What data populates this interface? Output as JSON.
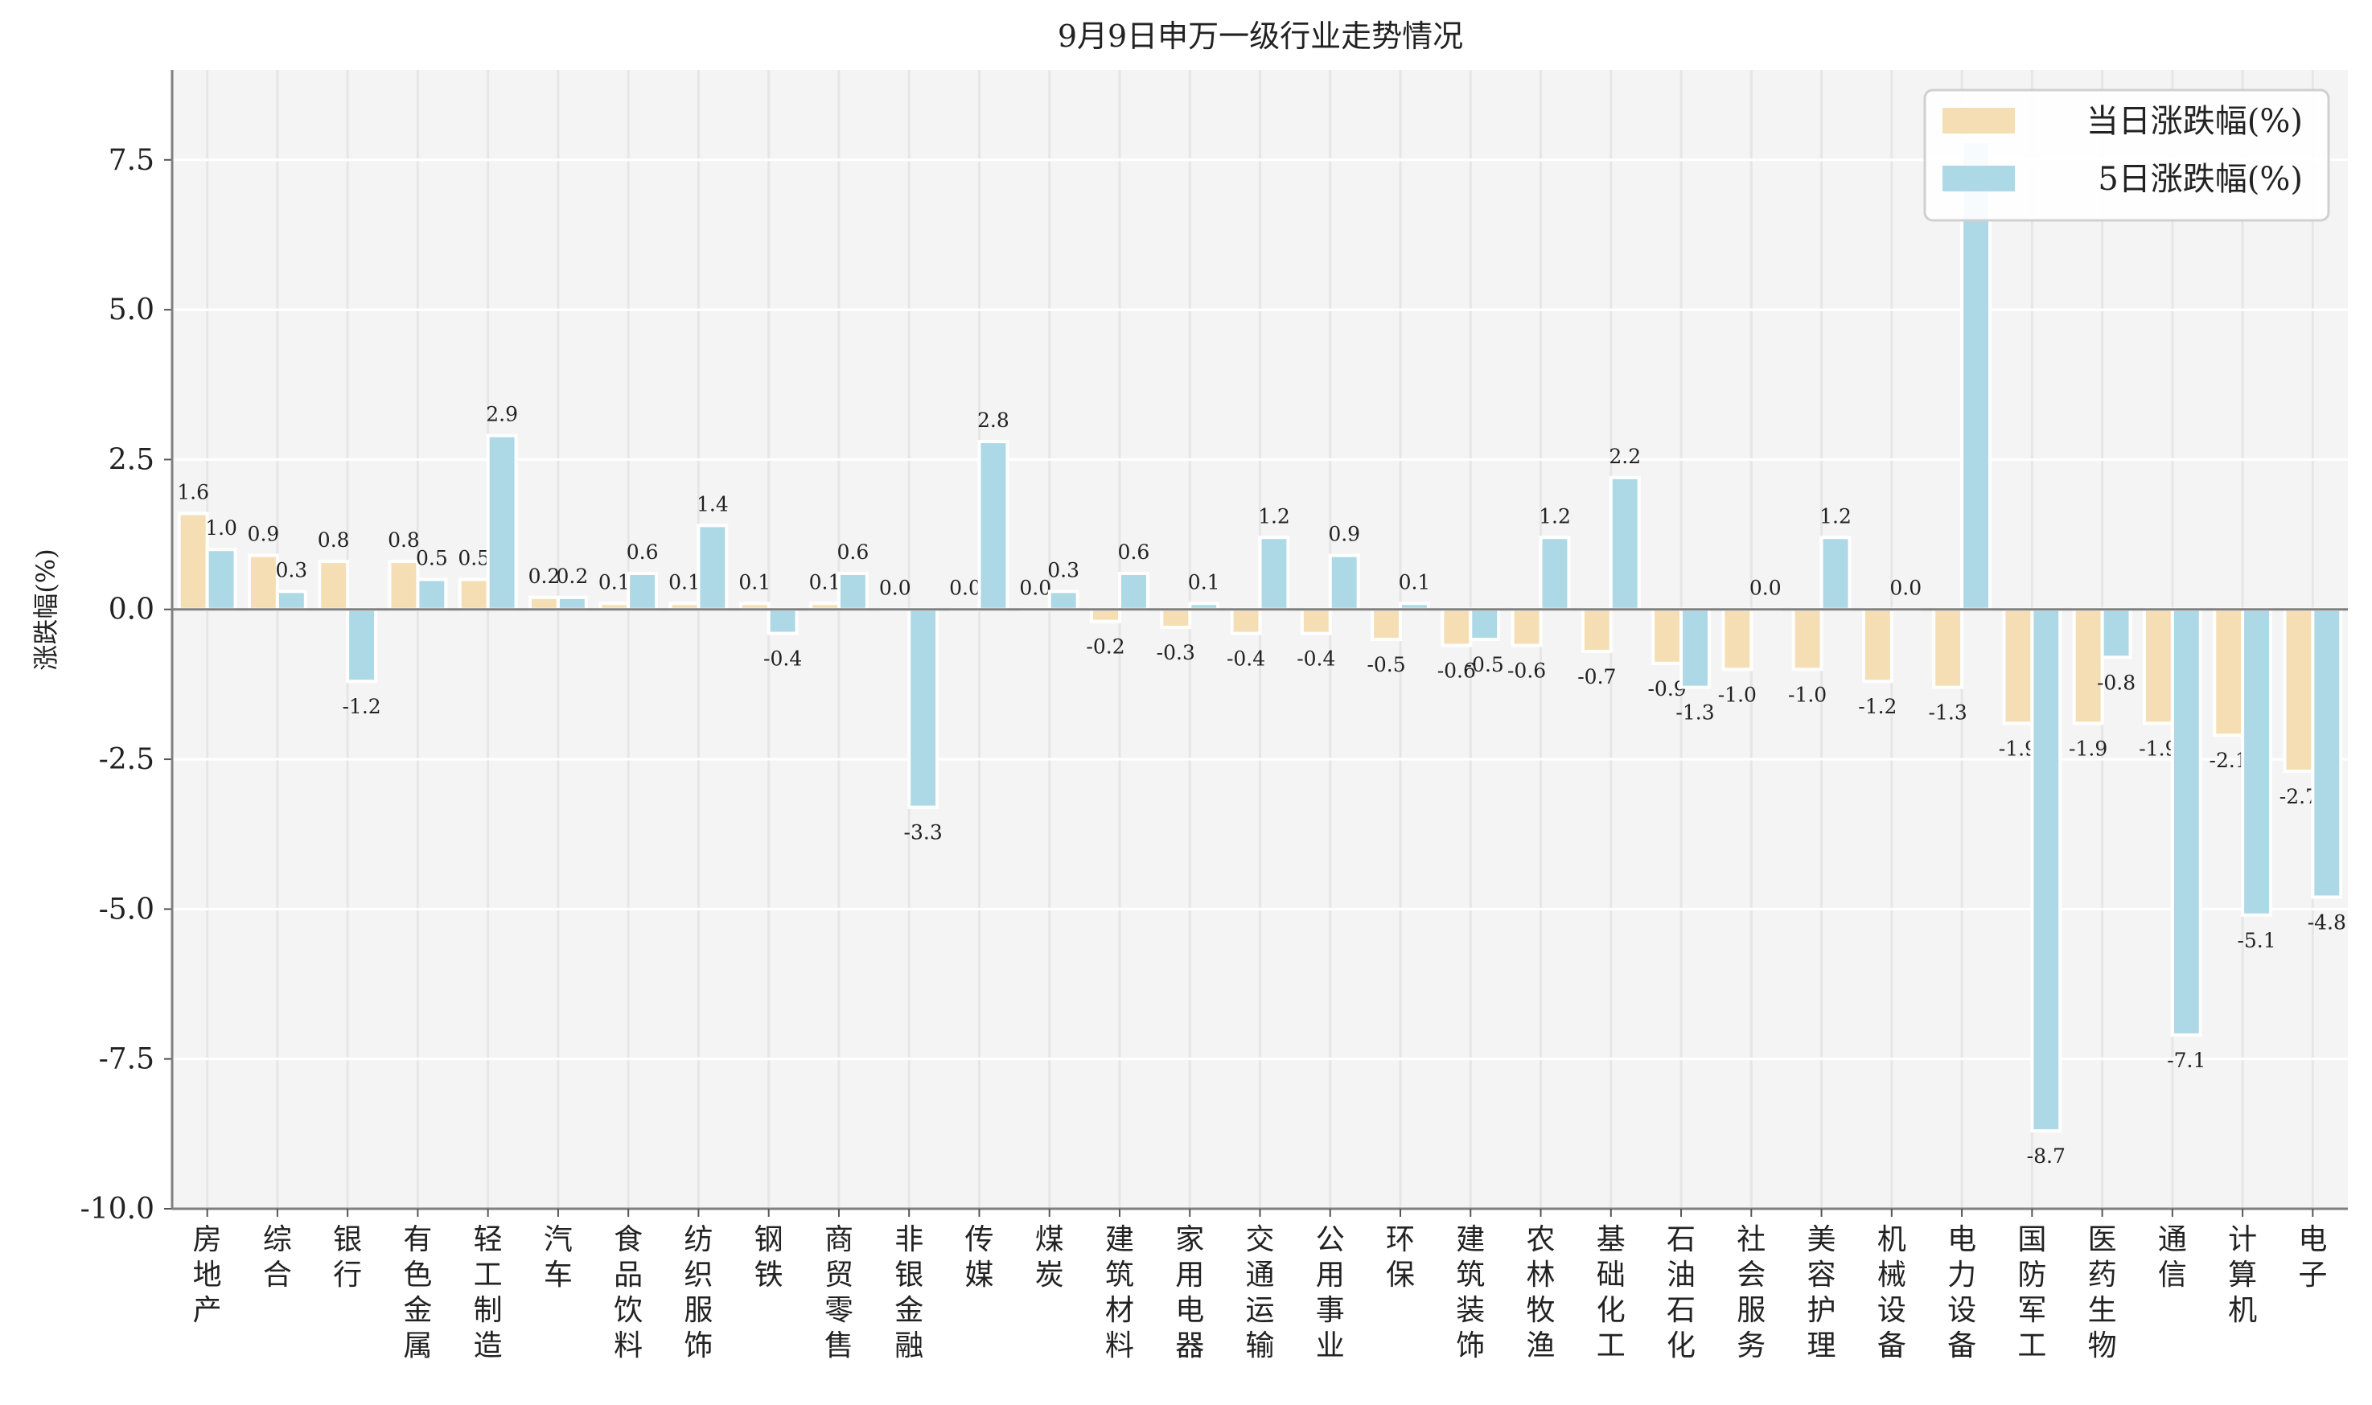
{
  "chart_data": {
    "type": "bar",
    "title": "9月9日申万一级行业走势情况",
    "xlabel": "",
    "ylabel": "涨跌幅(%)",
    "ylim": [
      -10,
      9
    ],
    "yticks": [
      -10.0,
      -7.5,
      -5.0,
      -2.5,
      0.0,
      2.5,
      5.0,
      7.5
    ],
    "ytick_labels": [
      "-10.0",
      "-7.5",
      "-5.0",
      "-2.5",
      "0.0",
      "2.5",
      "5.0",
      "7.5"
    ],
    "grid": true,
    "legend_position": "top-right",
    "categories": [
      "房地产",
      "综合",
      "银行",
      "有色金属",
      "轻工制造",
      "汽车",
      "食品饮料",
      "纺织服饰",
      "钢铁",
      "商贸零售",
      "非银金融",
      "传媒",
      "煤炭",
      "建筑材料",
      "家用电器",
      "交通运输",
      "公用事业",
      "环保",
      "建筑装饰",
      "农林牧渔",
      "基础化工",
      "石油石化",
      "社会服务",
      "美容护理",
      "机械设备",
      "电力设备",
      "国防军工",
      "医药生物",
      "通信",
      "计算机",
      "电子"
    ],
    "series": [
      {
        "name": "当日涨跌幅(%)",
        "color": "#f5deb3",
        "values": [
          1.6,
          0.9,
          0.8,
          0.8,
          0.5,
          0.2,
          0.1,
          0.1,
          0.1,
          0.1,
          0.0,
          0.0,
          0.0,
          -0.2,
          -0.3,
          -0.4,
          -0.4,
          -0.5,
          -0.6,
          -0.6,
          -0.7,
          -0.9,
          -1.0,
          -1.0,
          -1.2,
          -1.3,
          -1.9,
          -1.9,
          -1.9,
          -2.1,
          -2.7
        ]
      },
      {
        "name": "5日涨跌幅(%)",
        "color": "#add8e6",
        "values": [
          1.0,
          0.3,
          -1.2,
          0.5,
          2.9,
          0.2,
          0.6,
          1.4,
          -0.4,
          0.6,
          -3.3,
          2.8,
          0.3,
          0.6,
          0.1,
          1.2,
          0.9,
          0.1,
          -0.5,
          1.2,
          2.2,
          -1.3,
          0.0,
          1.2,
          0.0,
          7.8,
          -8.7,
          -0.8,
          -7.1,
          -5.1,
          -4.8
        ]
      }
    ]
  }
}
